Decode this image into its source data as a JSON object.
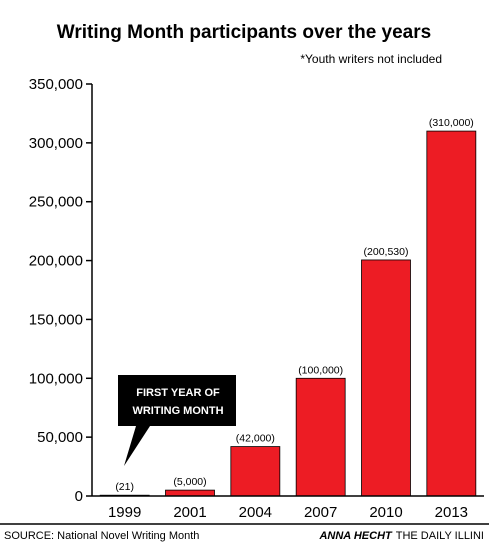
{
  "chart_data": {
    "type": "bar",
    "title": "Writing Month participants over the years",
    "subtitle": "*Youth writers not included",
    "categories": [
      "1999",
      "2001",
      "2004",
      "2007",
      "2010",
      "2013"
    ],
    "values": [
      21,
      5000,
      42000,
      100000,
      200530,
      310000
    ],
    "data_labels": [
      "(21)",
      "(5,000)",
      "(42,000)",
      "(100,000)",
      "(200,530)",
      "(310,000)"
    ],
    "yticks": [
      "0",
      "50,000",
      "100,000",
      "150,000",
      "200,000",
      "250,000",
      "300,000",
      "350,000"
    ],
    "ylim": [
      0,
      350000
    ],
    "bar_color": "#ed1c24",
    "grid": false,
    "annotation": {
      "lines": [
        "FIRST YEAR OF",
        "WRITING MONTH"
      ],
      "target_category": "1999"
    }
  },
  "footer": {
    "source": "SOURCE: National Novel Writing Month",
    "credit_name": "ANNA HECHT",
    "credit_org": "THE DAILY ILLINI"
  }
}
